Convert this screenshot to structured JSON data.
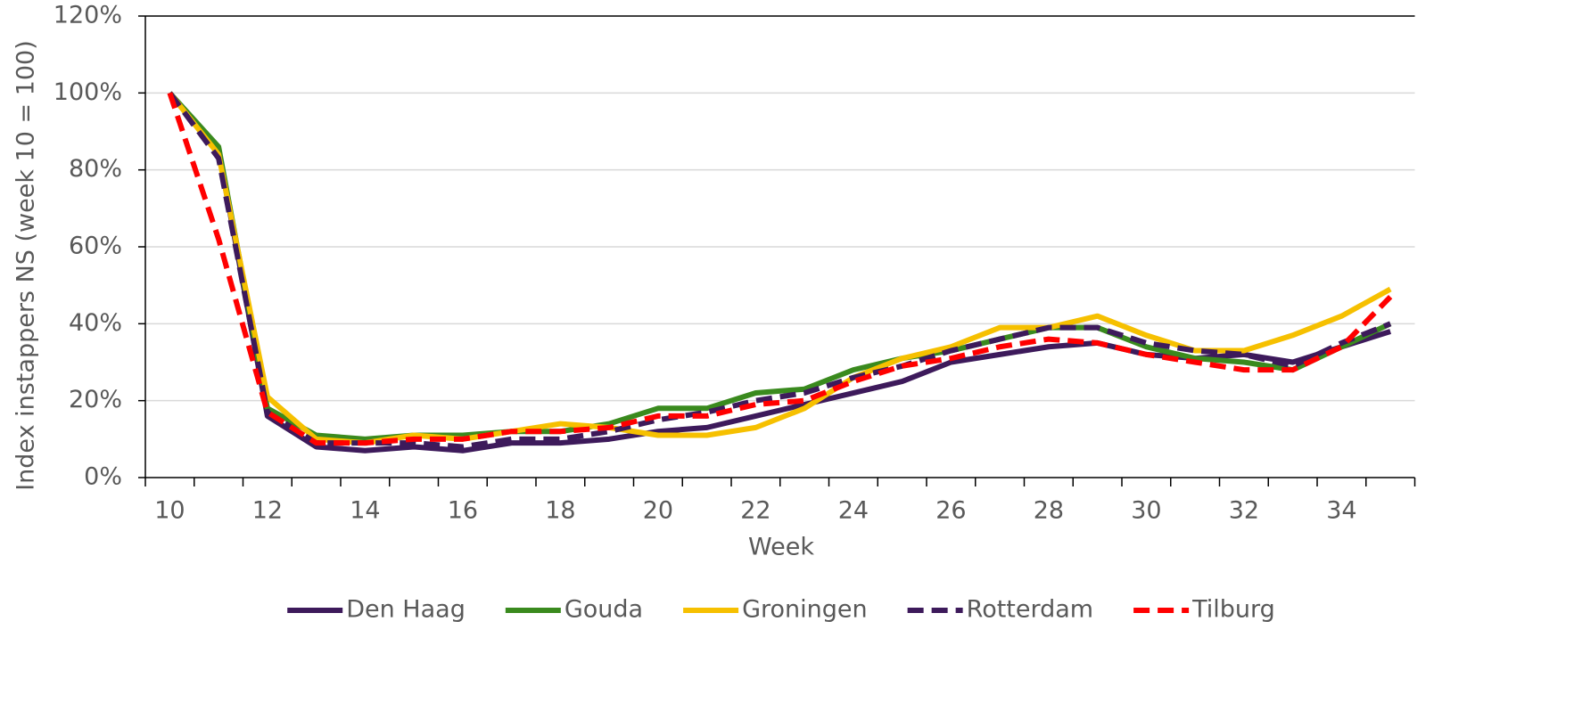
{
  "chart_data": {
    "type": "line",
    "xlabel": "Week",
    "ylabel": "Index instappers NS (week 10 = 100)",
    "categories": [
      10,
      null,
      12,
      null,
      14,
      null,
      16,
      null,
      18,
      null,
      20,
      null,
      22,
      null,
      24,
      null,
      26,
      null,
      28,
      null,
      30,
      null,
      32,
      null,
      34,
      null
    ],
    "ylim": [
      0,
      120
    ],
    "yticks": [
      {
        "value": 0,
        "label": "0%"
      },
      {
        "value": 20,
        "label": "20%"
      },
      {
        "value": 40,
        "label": "40%"
      },
      {
        "value": 60,
        "label": "60%"
      },
      {
        "value": 80,
        "label": "80%"
      },
      {
        "value": 100,
        "label": "100%"
      },
      {
        "value": 120,
        "label": "120%"
      }
    ],
    "grid": true,
    "legend": "bottom",
    "series": [
      {
        "name": "Den Haag",
        "color": "#3d1a5b",
        "line_style": "solid",
        "values": [
          100,
          85,
          16,
          8,
          7,
          8,
          7,
          9,
          9,
          10,
          12,
          13,
          16,
          19,
          22,
          25,
          30,
          32,
          34,
          35,
          32,
          31,
          32,
          30,
          34,
          38
        ]
      },
      {
        "name": "Gouda",
        "color": "#3a8a1e",
        "line_style": "solid",
        "values": [
          100,
          86,
          18,
          11,
          10,
          11,
          11,
          12,
          12,
          14,
          18,
          18,
          22,
          23,
          28,
          31,
          33,
          36,
          39,
          39,
          34,
          31,
          30,
          28,
          34,
          40
        ]
      },
      {
        "name": "Groningen",
        "color": "#f6c000",
        "line_style": "solid",
        "values": [
          100,
          84,
          21,
          10,
          9,
          11,
          10,
          12,
          14,
          13,
          11,
          11,
          13,
          18,
          26,
          31,
          34,
          39,
          39,
          42,
          37,
          33,
          33,
          37,
          42,
          49
        ]
      },
      {
        "name": "Rotterdam",
        "color": "#3d1a5b",
        "line_style": "dashed",
        "values": [
          100,
          83,
          17,
          9,
          9,
          9,
          8,
          10,
          10,
          12,
          15,
          17,
          20,
          22,
          26,
          29,
          33,
          36,
          39,
          39,
          35,
          33,
          32,
          29,
          35,
          40
        ]
      },
      {
        "name": "Tilburg",
        "color": "#ff0000",
        "line_style": "dashed",
        "values": [
          100,
          62,
          17,
          9,
          9,
          10,
          10,
          12,
          12,
          13,
          16,
          16,
          19,
          20,
          25,
          29,
          31,
          34,
          36,
          35,
          32,
          30,
          28,
          28,
          34,
          47
        ]
      }
    ]
  }
}
